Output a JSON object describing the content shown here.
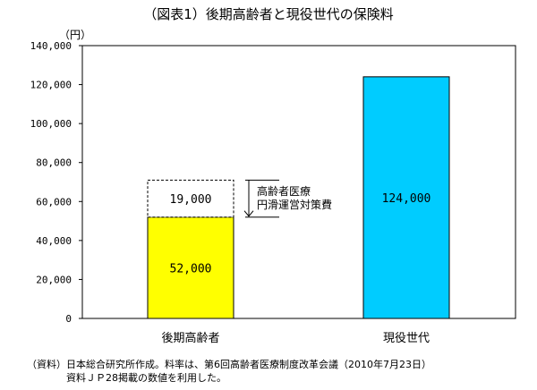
{
  "chart_data": {
    "type": "bar",
    "title": "（図表1）後期高齢者と現役世代の保険料",
    "ylabel": "（円）",
    "xlabel": "",
    "ylim": [
      0,
      140000
    ],
    "yticks": [
      0,
      20000,
      40000,
      60000,
      80000,
      100000,
      120000,
      140000
    ],
    "ytick_labels": [
      "0",
      "20,000",
      "40,000",
      "60,000",
      "80,000",
      "100,000",
      "120,000",
      "140,000"
    ],
    "categories": [
      "後期高齢者",
      "現役世代"
    ],
    "bars": [
      {
        "category": "後期高齢者",
        "value": 52000,
        "label": "52,000",
        "color": "#ffff00"
      },
      {
        "category": "現役世代",
        "value": 124000,
        "label": "124,000",
        "color": "#00ccff"
      }
    ],
    "stacked_dashed": {
      "category": "後期高齢者",
      "base": 52000,
      "value": 19000,
      "label": "19,000"
    },
    "annotation_lines": [
      "高齢者医療",
      "円滑運営対策費"
    ],
    "grid": false,
    "legend": "none"
  },
  "source_lines": [
    "（資料）日本総合研究所作成。料率は、第6回高齢者医療制度改革会議（2010年7月23日）",
    "　　　　資料ＪＰ28掲載の数値を利用した。"
  ]
}
